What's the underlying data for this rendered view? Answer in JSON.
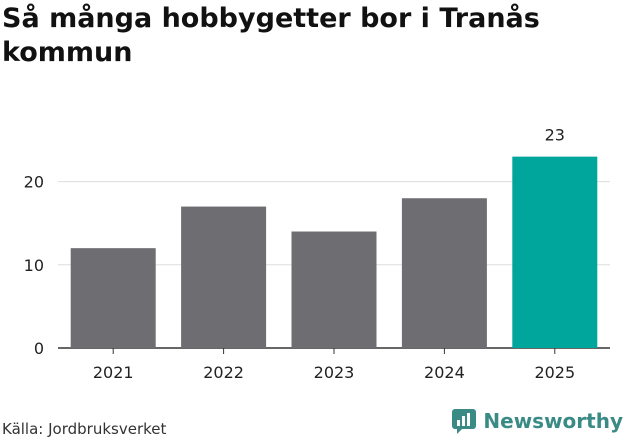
{
  "title": "Så många hobbygetter bor i Tranås kommun",
  "source": "Källa: Jordbruksverket",
  "brand": "Newsworthy",
  "colors": {
    "bar": "#6e6d72",
    "highlight": "#00a59b",
    "brand": "#3a8a86",
    "grid": "#dddddd",
    "axis": "#333333"
  },
  "chart_data": {
    "type": "bar",
    "categories": [
      "2021",
      "2022",
      "2023",
      "2024",
      "2025"
    ],
    "values": [
      12,
      17,
      14,
      18,
      23
    ],
    "highlight_index": 4,
    "data_labels": {
      "4": "23"
    },
    "ylim": [
      0,
      25
    ],
    "yticks": [
      0,
      10,
      20
    ],
    "grid": true
  }
}
